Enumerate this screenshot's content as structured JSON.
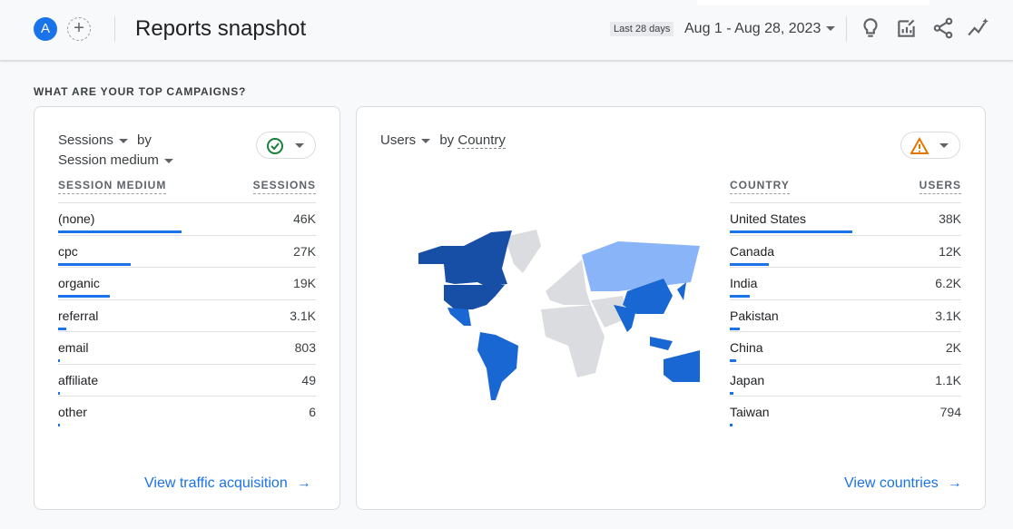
{
  "header": {
    "avatar_letter": "A",
    "add_icon": "plus-icon",
    "title": "Reports snapshot",
    "range_chip": "Last 28 days",
    "date_range": "Aug 1 - Aug 28, 2023",
    "icons": [
      "lightbulb-icon",
      "edit-report-icon",
      "share-icon",
      "insights-icon"
    ]
  },
  "section_title": "WHAT ARE YOUR TOP CAMPAIGNS?",
  "left_card": {
    "metric": "Sessions",
    "by": "by",
    "dimension": "Session medium",
    "status_icon": "check-circle-icon",
    "col_dimension": "SESSION MEDIUM",
    "col_metric": "SESSIONS",
    "rows": [
      {
        "label": "(none)",
        "value": "46K",
        "share": 0.48
      },
      {
        "label": "cpc",
        "value": "27K",
        "share": 0.28
      },
      {
        "label": "organic",
        "value": "19K",
        "share": 0.2
      },
      {
        "label": "referral",
        "value": "3.1K",
        "share": 0.032
      },
      {
        "label": "email",
        "value": "803",
        "share": 0.008
      },
      {
        "label": "affiliate",
        "value": "49",
        "share": 0.0005
      },
      {
        "label": "other",
        "value": "6",
        "share": 0.0001
      }
    ],
    "link": "View traffic acquisition"
  },
  "right_card": {
    "metric": "Users",
    "by": "by",
    "dimension": "Country",
    "status_icon": "warning-icon",
    "col_dimension": "COUNTRY",
    "col_metric": "USERS",
    "rows": [
      {
        "label": "United States",
        "value": "38K",
        "share": 0.53
      },
      {
        "label": "Canada",
        "value": "12K",
        "share": 0.17
      },
      {
        "label": "India",
        "value": "6.2K",
        "share": 0.087
      },
      {
        "label": "Pakistan",
        "value": "3.1K",
        "share": 0.043
      },
      {
        "label": "China",
        "value": "2K",
        "share": 0.028
      },
      {
        "label": "Japan",
        "value": "1.1K",
        "share": 0.015
      },
      {
        "label": "Taiwan",
        "value": "794",
        "share": 0.011
      }
    ],
    "link": "View countries",
    "map_colors": {
      "high": "#174ea6",
      "mid": "#1967d2",
      "low": "#8ab4f8",
      "none": "#dadce0"
    }
  },
  "colors": {
    "accent": "#1a73e8",
    "success": "#188038",
    "warning": "#e37400"
  }
}
